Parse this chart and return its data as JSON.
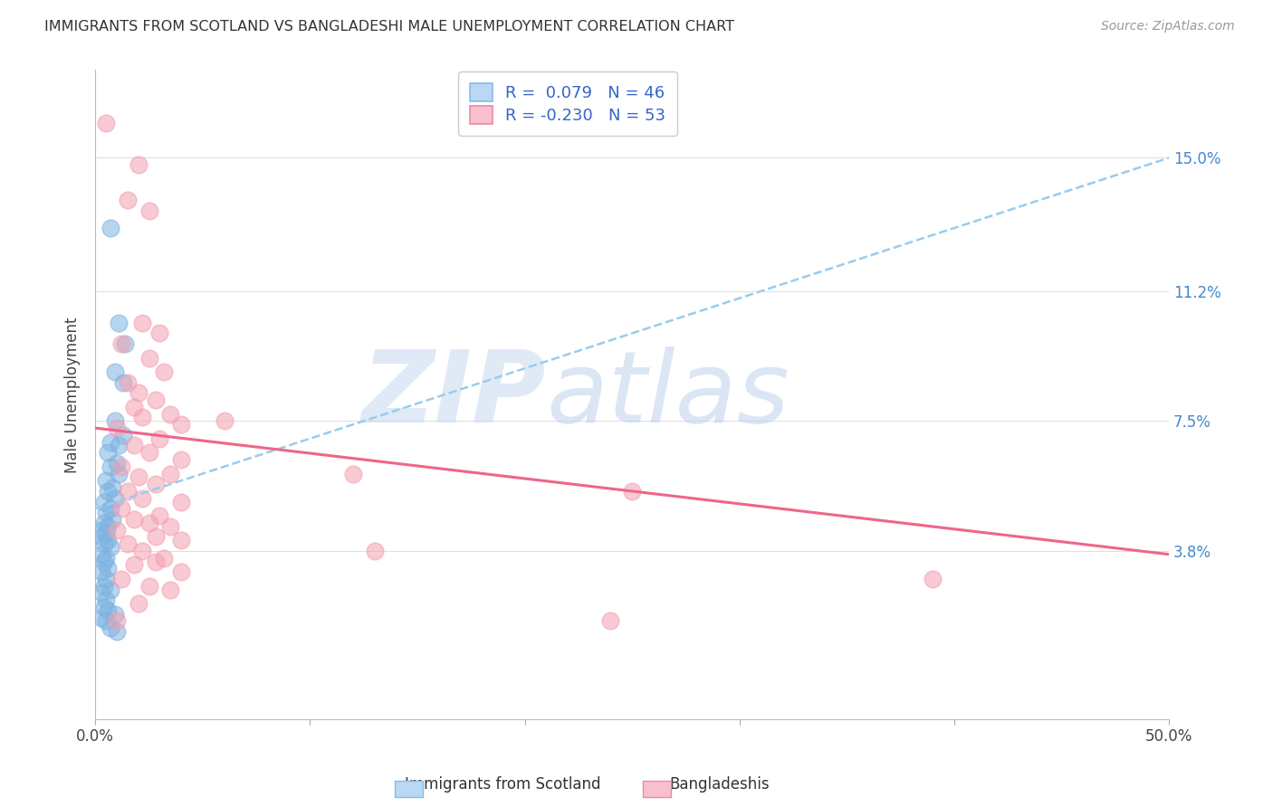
{
  "title": "IMMIGRANTS FROM SCOTLAND VS BANGLADESHI MALE UNEMPLOYMENT CORRELATION CHART",
  "source": "Source: ZipAtlas.com",
  "xlabel_blue": "Immigrants from Scotland",
  "xlabel_pink": "Bangladeshis",
  "ylabel": "Male Unemployment",
  "xlim": [
    0.0,
    0.5
  ],
  "ylim": [
    -0.01,
    0.175
  ],
  "ytick_labels": [
    "3.8%",
    "7.5%",
    "11.2%",
    "15.0%"
  ],
  "ytick_positions": [
    0.038,
    0.075,
    0.112,
    0.15
  ],
  "blue_R": 0.079,
  "blue_N": 46,
  "pink_R": -0.23,
  "pink_N": 53,
  "blue_color": "#7EB4E2",
  "pink_color": "#F4A0B0",
  "trend_blue_color": "#99CCEE",
  "trend_pink_color": "#EE6688",
  "watermark_zip": "ZIP",
  "watermark_atlas": "atlas",
  "background_color": "#FFFFFF",
  "blue_trend_x0": 0.0,
  "blue_trend_y0": 0.05,
  "blue_trend_x1": 0.5,
  "blue_trend_y1": 0.15,
  "pink_trend_x0": 0.0,
  "pink_trend_y0": 0.073,
  "pink_trend_x1": 0.5,
  "pink_trend_y1": 0.037,
  "blue_scatter": [
    [
      0.007,
      0.13
    ],
    [
      0.011,
      0.103
    ],
    [
      0.014,
      0.097
    ],
    [
      0.009,
      0.089
    ],
    [
      0.013,
      0.086
    ],
    [
      0.009,
      0.075
    ],
    [
      0.013,
      0.071
    ],
    [
      0.007,
      0.069
    ],
    [
      0.011,
      0.068
    ],
    [
      0.006,
      0.066
    ],
    [
      0.01,
      0.063
    ],
    [
      0.007,
      0.062
    ],
    [
      0.011,
      0.06
    ],
    [
      0.005,
      0.058
    ],
    [
      0.008,
      0.056
    ],
    [
      0.006,
      0.055
    ],
    [
      0.009,
      0.053
    ],
    [
      0.004,
      0.052
    ],
    [
      0.007,
      0.05
    ],
    [
      0.005,
      0.049
    ],
    [
      0.008,
      0.047
    ],
    [
      0.004,
      0.046
    ],
    [
      0.006,
      0.045
    ],
    [
      0.003,
      0.044
    ],
    [
      0.005,
      0.043
    ],
    [
      0.003,
      0.042
    ],
    [
      0.006,
      0.041
    ],
    [
      0.004,
      0.04
    ],
    [
      0.007,
      0.039
    ],
    [
      0.003,
      0.037
    ],
    [
      0.005,
      0.036
    ],
    [
      0.004,
      0.035
    ],
    [
      0.006,
      0.033
    ],
    [
      0.003,
      0.032
    ],
    [
      0.005,
      0.03
    ],
    [
      0.004,
      0.028
    ],
    [
      0.007,
      0.027
    ],
    [
      0.003,
      0.026
    ],
    [
      0.005,
      0.024
    ],
    [
      0.004,
      0.022
    ],
    [
      0.006,
      0.021
    ],
    [
      0.009,
      0.02
    ],
    [
      0.003,
      0.019
    ],
    [
      0.005,
      0.018
    ],
    [
      0.007,
      0.016
    ],
    [
      0.01,
      0.015
    ]
  ],
  "pink_scatter": [
    [
      0.005,
      0.16
    ],
    [
      0.02,
      0.148
    ],
    [
      0.015,
      0.138
    ],
    [
      0.025,
      0.135
    ],
    [
      0.022,
      0.103
    ],
    [
      0.03,
      0.1
    ],
    [
      0.012,
      0.097
    ],
    [
      0.025,
      0.093
    ],
    [
      0.032,
      0.089
    ],
    [
      0.015,
      0.086
    ],
    [
      0.02,
      0.083
    ],
    [
      0.028,
      0.081
    ],
    [
      0.018,
      0.079
    ],
    [
      0.035,
      0.077
    ],
    [
      0.022,
      0.076
    ],
    [
      0.04,
      0.074
    ],
    [
      0.01,
      0.073
    ],
    [
      0.03,
      0.07
    ],
    [
      0.018,
      0.068
    ],
    [
      0.025,
      0.066
    ],
    [
      0.04,
      0.064
    ],
    [
      0.012,
      0.062
    ],
    [
      0.035,
      0.06
    ],
    [
      0.02,
      0.059
    ],
    [
      0.028,
      0.057
    ],
    [
      0.015,
      0.055
    ],
    [
      0.022,
      0.053
    ],
    [
      0.04,
      0.052
    ],
    [
      0.012,
      0.05
    ],
    [
      0.03,
      0.048
    ],
    [
      0.018,
      0.047
    ],
    [
      0.025,
      0.046
    ],
    [
      0.035,
      0.045
    ],
    [
      0.01,
      0.044
    ],
    [
      0.028,
      0.042
    ],
    [
      0.04,
      0.041
    ],
    [
      0.015,
      0.04
    ],
    [
      0.022,
      0.038
    ],
    [
      0.032,
      0.036
    ],
    [
      0.028,
      0.035
    ],
    [
      0.018,
      0.034
    ],
    [
      0.04,
      0.032
    ],
    [
      0.012,
      0.03
    ],
    [
      0.025,
      0.028
    ],
    [
      0.035,
      0.027
    ],
    [
      0.02,
      0.023
    ],
    [
      0.01,
      0.018
    ],
    [
      0.06,
      0.075
    ],
    [
      0.12,
      0.06
    ],
    [
      0.25,
      0.055
    ],
    [
      0.13,
      0.038
    ],
    [
      0.24,
      0.018
    ],
    [
      0.39,
      0.03
    ]
  ]
}
